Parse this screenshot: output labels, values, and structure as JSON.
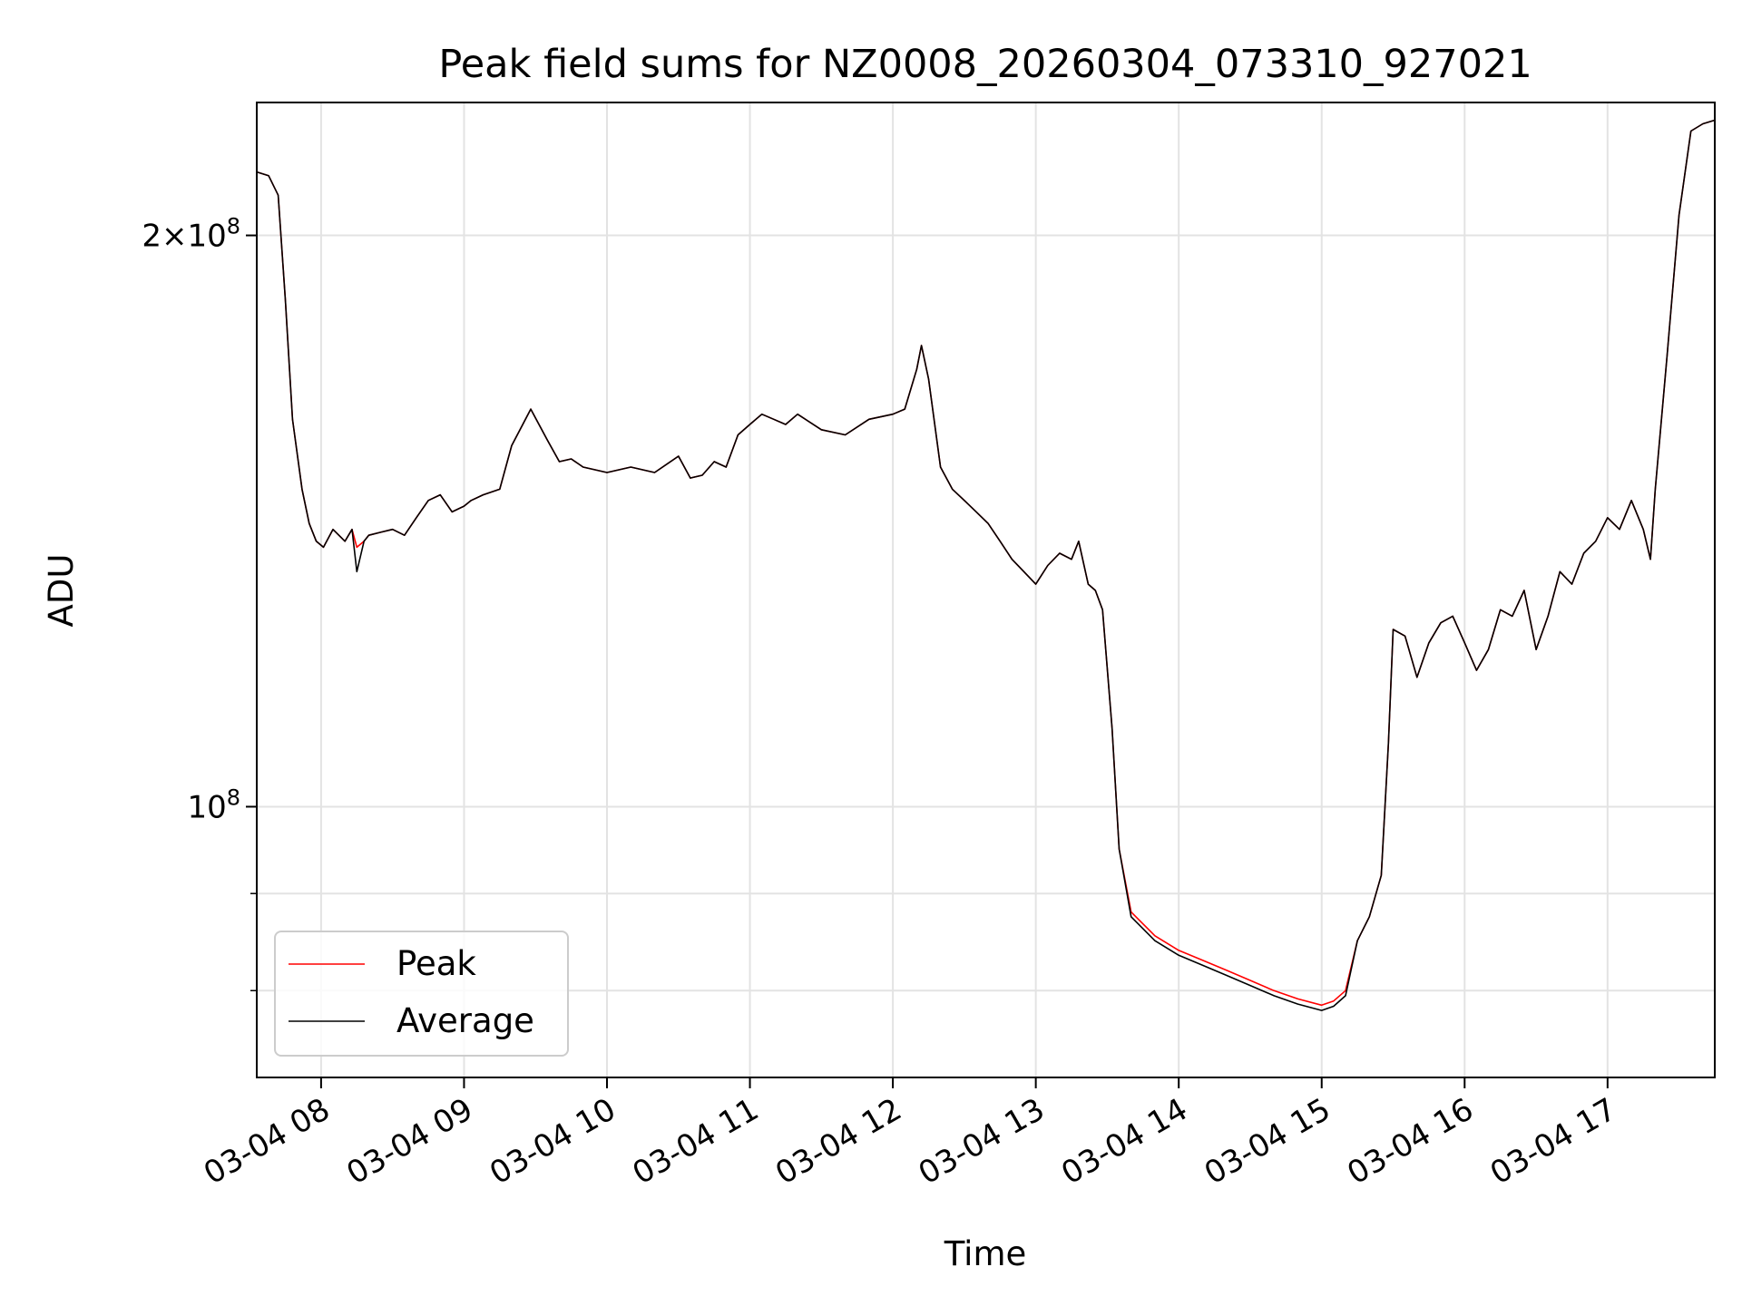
{
  "chart_data": {
    "type": "line",
    "title": "Peak field sums for NZ0008_20260304_073310_927021",
    "xlabel": "Time",
    "ylabel": "ADU",
    "yscale": "log",
    "grid": true,
    "legend_position": "lower-left",
    "xlim": [
      "2026-03-04 07:33",
      "2026-03-04 17:45"
    ],
    "ylim": [
      72000000,
      235000000
    ],
    "x_ticks": [
      "2026-03-04 08:00",
      "2026-03-04 09:00",
      "2026-03-04 10:00",
      "2026-03-04 11:00",
      "2026-03-04 12:00",
      "2026-03-04 13:00",
      "2026-03-04 14:00",
      "2026-03-04 15:00",
      "2026-03-04 16:00",
      "2026-03-04 17:00"
    ],
    "x_tick_labels": [
      "03-04 08",
      "03-04 09",
      "03-04 10",
      "03-04 11",
      "03-04 12",
      "03-04 13",
      "03-04 14",
      "03-04 15",
      "03-04 16",
      "03-04 17"
    ],
    "y_ticks": [
      {
        "value": 200000000,
        "mantissa": "2",
        "exponent": "8"
      },
      {
        "value": 100000000,
        "mantissa": "",
        "exponent": "8"
      }
    ],
    "y_minor_ticks": [
      90000000,
      80000000
    ],
    "x": [
      "2026-03-04 07:33",
      "2026-03-04 07:38",
      "2026-03-04 07:42",
      "2026-03-04 07:45",
      "2026-03-04 07:48",
      "2026-03-04 07:52",
      "2026-03-04 07:55",
      "2026-03-04 07:58",
      "2026-03-04 08:01",
      "2026-03-04 08:05",
      "2026-03-04 08:10",
      "2026-03-04 08:13",
      "2026-03-04 08:15",
      "2026-03-04 08:18",
      "2026-03-04 08:20",
      "2026-03-04 08:25",
      "2026-03-04 08:30",
      "2026-03-04 08:35",
      "2026-03-04 08:40",
      "2026-03-04 08:45",
      "2026-03-04 08:50",
      "2026-03-04 08:55",
      "2026-03-04 09:00",
      "2026-03-04 09:03",
      "2026-03-04 09:08",
      "2026-03-04 09:15",
      "2026-03-04 09:20",
      "2026-03-04 09:28",
      "2026-03-04 09:35",
      "2026-03-04 09:40",
      "2026-03-04 09:45",
      "2026-03-04 09:50",
      "2026-03-04 09:55",
      "2026-03-04 10:00",
      "2026-03-04 10:10",
      "2026-03-04 10:20",
      "2026-03-04 10:30",
      "2026-03-04 10:35",
      "2026-03-04 10:40",
      "2026-03-04 10:45",
      "2026-03-04 10:50",
      "2026-03-04 10:55",
      "2026-03-04 11:00",
      "2026-03-04 11:05",
      "2026-03-04 11:10",
      "2026-03-04 11:15",
      "2026-03-04 11:20",
      "2026-03-04 11:30",
      "2026-03-04 11:40",
      "2026-03-04 11:50",
      "2026-03-04 12:00",
      "2026-03-04 12:05",
      "2026-03-04 12:10",
      "2026-03-04 12:12",
      "2026-03-04 12:15",
      "2026-03-04 12:20",
      "2026-03-04 12:25",
      "2026-03-04 12:30",
      "2026-03-04 12:35",
      "2026-03-04 12:40",
      "2026-03-04 12:45",
      "2026-03-04 12:50",
      "2026-03-04 12:55",
      "2026-03-04 13:00",
      "2026-03-04 13:05",
      "2026-03-04 13:10",
      "2026-03-04 13:15",
      "2026-03-04 13:18",
      "2026-03-04 13:22",
      "2026-03-04 13:25",
      "2026-03-04 13:28",
      "2026-03-04 13:32",
      "2026-03-04 13:35",
      "2026-03-04 13:40",
      "2026-03-04 13:50",
      "2026-03-04 14:00",
      "2026-03-04 14:10",
      "2026-03-04 14:20",
      "2026-03-04 14:30",
      "2026-03-04 14:40",
      "2026-03-04 14:50",
      "2026-03-04 15:00",
      "2026-03-04 15:05",
      "2026-03-04 15:10",
      "2026-03-04 15:15",
      "2026-03-04 15:20",
      "2026-03-04 15:25",
      "2026-03-04 15:28",
      "2026-03-04 15:30",
      "2026-03-04 15:35",
      "2026-03-04 15:40",
      "2026-03-04 15:45",
      "2026-03-04 15:50",
      "2026-03-04 15:55",
      "2026-03-04 16:00",
      "2026-03-04 16:05",
      "2026-03-04 16:10",
      "2026-03-04 16:15",
      "2026-03-04 16:20",
      "2026-03-04 16:25",
      "2026-03-04 16:30",
      "2026-03-04 16:35",
      "2026-03-04 16:40",
      "2026-03-04 16:45",
      "2026-03-04 16:50",
      "2026-03-04 16:55",
      "2026-03-04 17:00",
      "2026-03-04 17:05",
      "2026-03-04 17:10",
      "2026-03-04 17:15",
      "2026-03-04 17:18",
      "2026-03-04 17:20",
      "2026-03-04 17:25",
      "2026-03-04 17:30",
      "2026-03-04 17:35",
      "2026-03-04 17:40",
      "2026-03-04 17:45"
    ],
    "series": [
      {
        "name": "Peak",
        "color": "#ff0000",
        "values": [
          216000000,
          215000000,
          210000000,
          185000000,
          160000000,
          147000000,
          141000000,
          138000000,
          137000000,
          140000000,
          138000000,
          140000000,
          137000000,
          138000000,
          139000000,
          139500000,
          140000000,
          139000000,
          142000000,
          145000000,
          146000000,
          143000000,
          144000000,
          145000000,
          146000000,
          147000000,
          155000000,
          162000000,
          156000000,
          152000000,
          152500000,
          151000000,
          150500000,
          150000000,
          151000000,
          150000000,
          153000000,
          149000000,
          149500000,
          152000000,
          151000000,
          157000000,
          159000000,
          161000000,
          160000000,
          159000000,
          161000000,
          158000000,
          157000000,
          160000000,
          161000000,
          162000000,
          170000000,
          175000000,
          168000000,
          151000000,
          147000000,
          145000000,
          143000000,
          141000000,
          138000000,
          135000000,
          133000000,
          131000000,
          134000000,
          136000000,
          135000000,
          138000000,
          131000000,
          130000000,
          127000000,
          110000000,
          95000000,
          88000000,
          85500000,
          84000000,
          83000000,
          82000000,
          81000000,
          80000000,
          79200000,
          78600000,
          79000000,
          80000000,
          85000000,
          87500000,
          92000000,
          108000000,
          124000000,
          123000000,
          117000000,
          122000000,
          125000000,
          126000000,
          122000000,
          118000000,
          121000000,
          127000000,
          126000000,
          130000000,
          121000000,
          126000000,
          133000000,
          131000000,
          136000000,
          138000000,
          142000000,
          140000000,
          145000000,
          140000000,
          135000000,
          147000000,
          173000000,
          205000000,
          227000000,
          229000000,
          230000000
        ]
      },
      {
        "name": "Average",
        "color": "#000000",
        "values": [
          216000000,
          215000000,
          210000000,
          185000000,
          160000000,
          147000000,
          141000000,
          138000000,
          137000000,
          140000000,
          138000000,
          140000000,
          133000000,
          138000000,
          139000000,
          139500000,
          140000000,
          139000000,
          142000000,
          145000000,
          146000000,
          143000000,
          144000000,
          145000000,
          146000000,
          147000000,
          155000000,
          162000000,
          156000000,
          152000000,
          152500000,
          151000000,
          150500000,
          150000000,
          151000000,
          150000000,
          153000000,
          149000000,
          149500000,
          152000000,
          151000000,
          157000000,
          159000000,
          161000000,
          160000000,
          159000000,
          161000000,
          158000000,
          157000000,
          160000000,
          161000000,
          162000000,
          170000000,
          175000000,
          168000000,
          151000000,
          147000000,
          145000000,
          143000000,
          141000000,
          138000000,
          135000000,
          133000000,
          131000000,
          134000000,
          136000000,
          135000000,
          138000000,
          131000000,
          130000000,
          127000000,
          110000000,
          95000000,
          87500000,
          85000000,
          83500000,
          82500000,
          81500000,
          80500000,
          79500000,
          78700000,
          78100000,
          78500000,
          79500000,
          85000000,
          87500000,
          92000000,
          108000000,
          124000000,
          123000000,
          117000000,
          122000000,
          125000000,
          126000000,
          122000000,
          118000000,
          121000000,
          127000000,
          126000000,
          130000000,
          121000000,
          126000000,
          133000000,
          131000000,
          136000000,
          138000000,
          142000000,
          140000000,
          145000000,
          140000000,
          135000000,
          147000000,
          173000000,
          205000000,
          227000000,
          229000000,
          230000000
        ]
      }
    ]
  }
}
